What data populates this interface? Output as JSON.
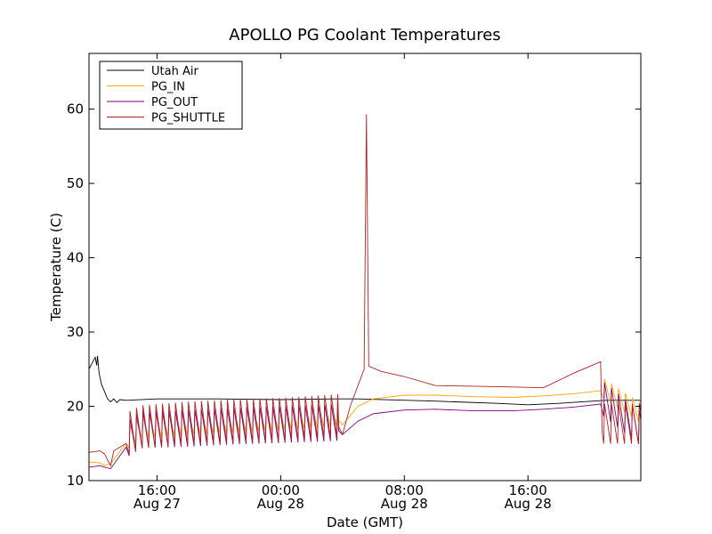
{
  "chart_data": {
    "type": "line",
    "title": "APOLLO PG Coolant Temperatures",
    "xlabel": "Date (GMT)",
    "ylabel": "Temperature (C)",
    "x_unit": "hours since Aug 27 00:00 GMT",
    "xlim": [
      11.6,
      47.3
    ],
    "ylim": [
      10,
      67.5
    ],
    "grid": false,
    "legend_position": "top-left",
    "x_ticks": [
      {
        "value": 16,
        "label": "16:00",
        "sublabel": "Aug 27"
      },
      {
        "value": 24,
        "label": "00:00",
        "sublabel": "Aug 28"
      },
      {
        "value": 32,
        "label": "08:00",
        "sublabel": "Aug 28"
      },
      {
        "value": 40,
        "label": "16:00",
        "sublabel": "Aug 28"
      }
    ],
    "y_ticks": [
      {
        "value": 10,
        "label": "10"
      },
      {
        "value": 20,
        "label": "20"
      },
      {
        "value": 30,
        "label": "30"
      },
      {
        "value": 40,
        "label": "40"
      },
      {
        "value": 50,
        "label": "50"
      },
      {
        "value": 60,
        "label": "60"
      }
    ],
    "series": [
      {
        "name": "Utah Air",
        "color": "#000000",
        "points": [
          [
            11.6,
            25.0
          ],
          [
            11.8,
            25.8
          ],
          [
            12.0,
            26.6
          ],
          [
            12.1,
            25.5
          ],
          [
            12.15,
            26.8
          ],
          [
            12.25,
            24.5
          ],
          [
            12.4,
            23.0
          ],
          [
            12.6,
            22.0
          ],
          [
            12.8,
            21.0
          ],
          [
            13.0,
            20.6
          ],
          [
            13.2,
            21.0
          ],
          [
            13.4,
            20.5
          ],
          [
            13.6,
            20.9
          ],
          [
            14.0,
            20.8
          ],
          [
            16.0,
            21.0
          ],
          [
            20.0,
            21.0
          ],
          [
            24.0,
            20.9
          ],
          [
            27.5,
            21.0
          ],
          [
            29.0,
            21.0
          ],
          [
            34.0,
            20.7
          ],
          [
            38.0,
            20.4
          ],
          [
            40.0,
            20.2
          ],
          [
            42.0,
            20.4
          ],
          [
            45.0,
            20.8
          ],
          [
            47.3,
            20.8
          ]
        ]
      },
      {
        "name": "PG_IN",
        "color": "#FFA500",
        "base": [
          [
            11.6,
            12.5
          ],
          [
            12.3,
            12.4
          ],
          [
            12.6,
            12.0
          ],
          [
            13.0,
            12.3
          ],
          [
            14.0,
            15.0
          ],
          [
            15.0,
            16.5
          ],
          [
            18.0,
            17.0
          ],
          [
            21.0,
            17.3
          ],
          [
            24.0,
            17.6
          ],
          [
            27.0,
            18.1
          ],
          [
            27.7,
            18.2
          ],
          [
            28.0,
            17.5
          ],
          [
            29.0,
            20.0
          ],
          [
            30.0,
            21.0
          ],
          [
            32.0,
            21.5
          ],
          [
            34.0,
            21.5
          ],
          [
            36.5,
            21.3
          ],
          [
            39.0,
            21.2
          ],
          [
            41.0,
            21.4
          ],
          [
            43.0,
            21.7
          ],
          [
            44.7,
            22.1
          ],
          [
            47.3,
            18.5
          ]
        ],
        "cycles": [
          {
            "start": 14.2,
            "end": 27.7,
            "period": 0.42,
            "amplitude": 4.0
          },
          {
            "start": 44.9,
            "end": 47.3,
            "period": 0.45,
            "amplitude": 3.5
          }
        ]
      },
      {
        "name": "PG_OUT",
        "color": "#800080",
        "base": [
          [
            11.6,
            11.8
          ],
          [
            12.3,
            12.0
          ],
          [
            12.6,
            11.8
          ],
          [
            13.0,
            11.6
          ],
          [
            14.0,
            14.5
          ],
          [
            15.0,
            15.8
          ],
          [
            18.0,
            16.0
          ],
          [
            21.0,
            16.3
          ],
          [
            24.0,
            16.5
          ],
          [
            27.0,
            16.7
          ],
          [
            27.7,
            16.8
          ],
          [
            28.0,
            16.2
          ],
          [
            29.0,
            18.0
          ],
          [
            30.0,
            19.0
          ],
          [
            32.0,
            19.5
          ],
          [
            34.0,
            19.6
          ],
          [
            36.5,
            19.4
          ],
          [
            39.0,
            19.4
          ],
          [
            41.0,
            19.6
          ],
          [
            43.0,
            19.9
          ],
          [
            44.7,
            20.3
          ],
          [
            47.3,
            16.0
          ]
        ],
        "cycles": [
          {
            "start": 14.2,
            "end": 27.7,
            "period": 0.42,
            "amplitude": 6.5
          },
          {
            "start": 44.9,
            "end": 47.3,
            "period": 0.45,
            "amplitude": 6.0
          }
        ]
      },
      {
        "name": "PG_SHUTTLE",
        "color": "#B22222",
        "base": [
          [
            11.6,
            13.8
          ],
          [
            12.3,
            14.0
          ],
          [
            12.6,
            13.6
          ],
          [
            13.0,
            12.0
          ],
          [
            13.2,
            14.0
          ],
          [
            14.0,
            15.0
          ],
          [
            15.0,
            16.0
          ],
          [
            18.0,
            16.5
          ],
          [
            21.0,
            16.8
          ],
          [
            24.0,
            17.0
          ],
          [
            27.0,
            17.4
          ],
          [
            27.7,
            17.5
          ],
          [
            28.0,
            16.2
          ],
          [
            28.5,
            20.0
          ],
          [
            29.4,
            25.0
          ],
          [
            29.55,
            59.3
          ],
          [
            29.7,
            25.4
          ],
          [
            30.5,
            24.7
          ],
          [
            32.0,
            24.0
          ],
          [
            34.0,
            22.8
          ],
          [
            36.5,
            22.7
          ],
          [
            39.0,
            22.6
          ],
          [
            41.0,
            22.5
          ],
          [
            43.0,
            24.5
          ],
          [
            44.7,
            26.0
          ],
          [
            44.8,
            16.5
          ],
          [
            47.3,
            16.5
          ]
        ],
        "cycles": [
          {
            "start": 14.2,
            "end": 27.7,
            "period": 0.42,
            "amplitude": 7.5
          },
          {
            "start": 44.9,
            "end": 47.3,
            "period": 0.45,
            "amplitude": 7.0
          }
        ]
      }
    ]
  }
}
